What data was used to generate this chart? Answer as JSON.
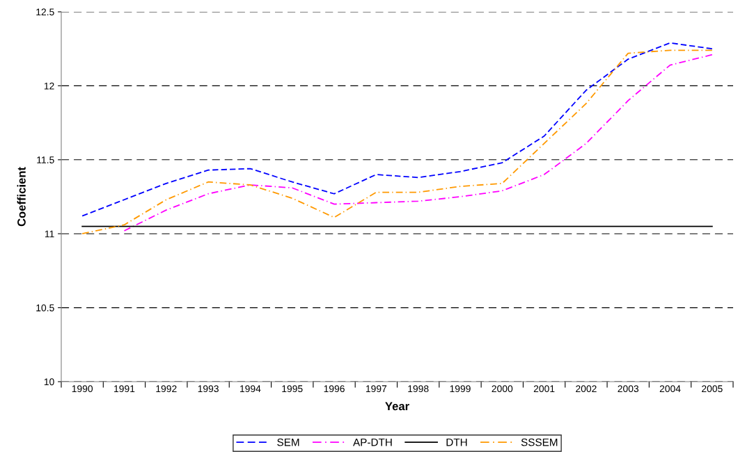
{
  "chart_data": {
    "type": "line",
    "xlabel": "Year",
    "ylabel": "Coefficient",
    "categories": [
      "1990",
      "1991",
      "1992",
      "1993",
      "1994",
      "1995",
      "1996",
      "1997",
      "1998",
      "1999",
      "2000",
      "2001",
      "2002",
      "2003",
      "2004",
      "2005"
    ],
    "series": [
      {
        "name": "SEM",
        "color": "#0000ff",
        "line_style": "dashed",
        "values": [
          11.12,
          11.23,
          11.34,
          11.43,
          11.44,
          11.35,
          11.27,
          11.4,
          11.38,
          11.42,
          11.48,
          11.66,
          11.97,
          12.18,
          12.29,
          12.25
        ]
      },
      {
        "name": "AP-DTH",
        "color": "#ff00ff",
        "line_style": "dotted",
        "values": [
          null,
          11.02,
          11.16,
          11.27,
          11.33,
          11.31,
          11.2,
          11.21,
          11.22,
          11.25,
          11.29,
          11.4,
          11.61,
          11.9,
          12.14,
          12.21
        ]
      },
      {
        "name": "DTH",
        "color": "#000000",
        "line_style": "solid",
        "values": [
          11.05,
          11.05,
          11.05,
          11.05,
          11.05,
          11.05,
          11.05,
          11.05,
          11.05,
          11.05,
          11.05,
          11.05,
          11.05,
          11.05,
          11.05,
          11.05
        ]
      },
      {
        "name": "SSSEM",
        "color": "#ff9900",
        "line_style": "dotted",
        "values": [
          11.0,
          11.06,
          11.23,
          11.35,
          11.33,
          11.24,
          11.11,
          11.28,
          11.28,
          11.32,
          11.34,
          11.61,
          11.88,
          12.22,
          12.24,
          12.24
        ]
      }
    ],
    "ylim": [
      10,
      12.5
    ],
    "yticks": [
      10,
      10.5,
      11,
      11.5,
      12,
      12.5
    ],
    "grid": "y",
    "legend": "bottom",
    "marker": "none"
  }
}
